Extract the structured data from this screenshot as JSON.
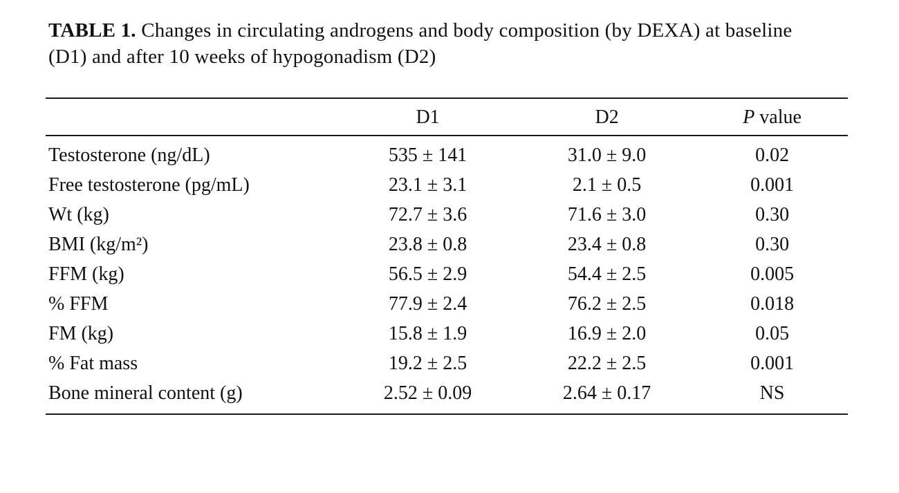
{
  "table": {
    "title_bold": "TABLE 1.",
    "title_rest": " Changes in circulating androgens and body composition (by DEXA) at baseline (D1) and after 10 weeks of hypogonadism (D2)",
    "columns": {
      "label": "",
      "col1": "D1",
      "col2": "D2",
      "col3_italic": "P",
      "col3_rest": " value"
    },
    "rows": [
      {
        "label": "Testosterone (ng/dL)",
        "d1": "535 ± 141",
        "d2": "31.0 ± 9.0",
        "p": "0.02"
      },
      {
        "label": "Free testosterone (pg/mL)",
        "d1": "23.1 ± 3.1",
        "d2": "2.1 ± 0.5",
        "p": "0.001"
      },
      {
        "label": "Wt (kg)",
        "d1": "72.7 ± 3.6",
        "d2": "71.6 ± 3.0",
        "p": "0.30"
      },
      {
        "label": "BMI (kg/m²)",
        "d1": "23.8 ± 0.8",
        "d2": "23.4 ± 0.8",
        "p": "0.30"
      },
      {
        "label": "FFM (kg)",
        "d1": "56.5 ± 2.9",
        "d2": "54.4 ± 2.5",
        "p": "0.005"
      },
      {
        "label": "% FFM",
        "d1": "77.9 ± 2.4",
        "d2": "76.2 ± 2.5",
        "p": "0.018"
      },
      {
        "label": "FM (kg)",
        "d1": "15.8 ± 1.9",
        "d2": "16.9 ± 2.0",
        "p": "0.05"
      },
      {
        "label": "% Fat mass",
        "d1": "19.2 ± 2.5",
        "d2": "22.2 ± 2.5",
        "p": "0.001"
      },
      {
        "label": "Bone mineral content (g)",
        "d1": "2.52 ± 0.09",
        "d2": "2.64 ± 0.17",
        "p": "NS"
      }
    ]
  }
}
